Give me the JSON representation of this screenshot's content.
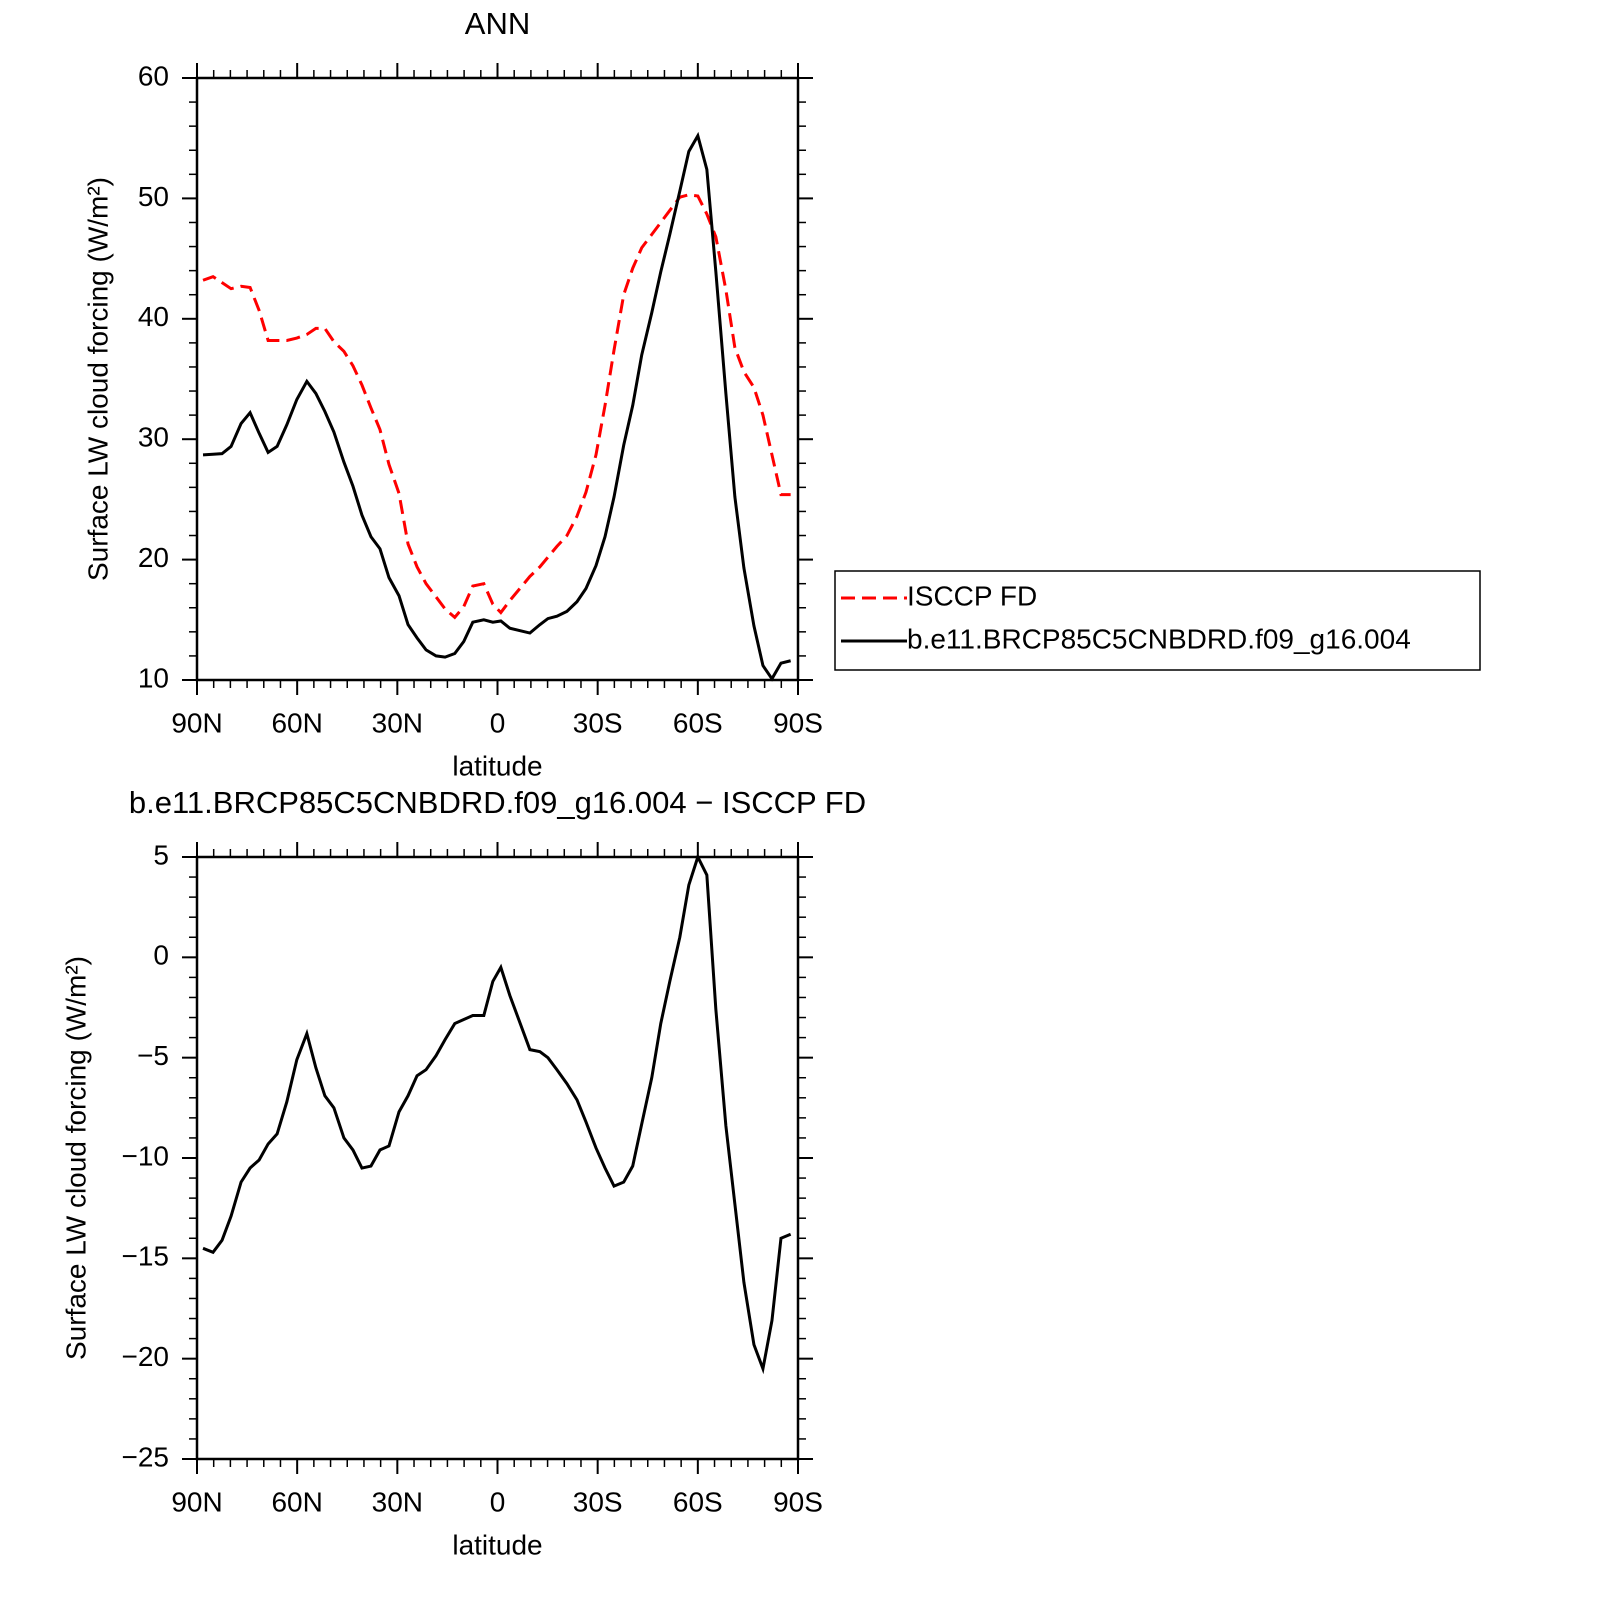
{
  "chart_data": [
    {
      "type": "line",
      "title": "ANN",
      "x_label": "latitude",
      "y_label": "Surface LW cloud forcing (W/m²)",
      "xlim": [
        90,
        -90
      ],
      "xticks": [
        {
          "value": 90,
          "label": "90N"
        },
        {
          "value": 60,
          "label": "60N"
        },
        {
          "value": 30,
          "label": "30N"
        },
        0,
        {
          "value": -30,
          "label": "30S"
        },
        {
          "value": -60,
          "label": "60S"
        },
        {
          "value": -90,
          "label": "90S"
        }
      ],
      "ylim": [
        10,
        60
      ],
      "yticks": [
        10,
        20,
        30,
        40,
        50,
        60
      ],
      "legend": "right",
      "x": [
        88.2,
        85.2,
        82.5,
        79.8,
        76.8,
        74.1,
        71.4,
        68.7,
        66.0,
        63.1,
        60.1,
        57.1,
        54.4,
        51.7,
        49.0,
        46.0,
        43.3,
        40.6,
        37.9,
        35.2,
        32.5,
        29.5,
        26.8,
        24.1,
        21.4,
        18.4,
        15.7,
        12.8,
        10.1,
        7.4,
        4.1,
        1.4,
        -1.0,
        -3.7,
        -9.7,
        -12.7,
        -15.1,
        -17.8,
        -20.8,
        -23.8,
        -26.5,
        -29.5,
        -32.2,
        -34.9,
        -37.8,
        -40.5,
        -43.2,
        -46.2,
        -48.9,
        -51.6,
        -54.6,
        -57.3,
        -60.0,
        -62.7,
        -65.4,
        -68.4,
        -71.1,
        -73.8,
        -76.8,
        -79.5,
        -82.2,
        -84.9,
        -87.8
      ],
      "series": [
        {
          "name": "ISCCP FD",
          "color": "#ff0000",
          "style": "dashed",
          "values": [
            43.2,
            43.5,
            43.0,
            42.5,
            42.7,
            42.6,
            40.7,
            38.2,
            38.2,
            38.2,
            38.4,
            38.7,
            39.2,
            39.2,
            38.1,
            37.3,
            36.1,
            34.5,
            32.6,
            30.8,
            27.9,
            25.5,
            21.3,
            19.4,
            18.0,
            16.9,
            15.9,
            15.2,
            16.1,
            17.8,
            18.0,
            16.3,
            15.6,
            16.6,
            18.6,
            19.4,
            20.2,
            21.1,
            22.0,
            23.6,
            25.6,
            28.7,
            32.8,
            37.4,
            42.0,
            44.2,
            45.9,
            47.0,
            48.0,
            49.0,
            50.1,
            50.3,
            50.2,
            48.7,
            46.8,
            42.4,
            37.6,
            35.6,
            34.3,
            32.0,
            28.7,
            25.4,
            25.4
          ]
        },
        {
          "name": "b.e11.BRCP85C5CNBDRD.f09_g16.004",
          "color": "#000000",
          "style": "solid",
          "values": [
            28.7,
            28.75,
            28.8,
            29.4,
            31.3,
            32.2,
            30.5,
            28.9,
            29.4,
            31.2,
            33.3,
            34.8,
            33.8,
            32.3,
            30.6,
            28.1,
            26.1,
            23.7,
            21.9,
            20.9,
            18.5,
            17.0,
            14.6,
            13.5,
            12.5,
            12.0,
            11.9,
            12.2,
            13.2,
            14.8,
            15.0,
            14.8,
            14.9,
            14.3,
            13.9,
            14.6,
            15.1,
            15.3,
            15.7,
            16.5,
            17.6,
            19.5,
            21.9,
            25.2,
            29.5,
            32.8,
            37.0,
            40.5,
            43.9,
            47.0,
            50.6,
            53.9,
            55.2,
            52.4,
            43.9,
            33.8,
            25.2,
            19.3,
            14.5,
            11.2,
            10.1,
            11.4,
            11.6
          ]
        }
      ]
    },
    {
      "type": "line",
      "title": "b.e11.BRCP85C5CNBDRD.f09_g16.004 − ISCCP FD",
      "x_label": "latitude",
      "y_label": "Surface LW cloud forcing (W/m²)",
      "xlim": [
        90,
        -90
      ],
      "xticks": [
        {
          "value": 90,
          "label": "90N"
        },
        {
          "value": 60,
          "label": "60N"
        },
        {
          "value": 30,
          "label": "30N"
        },
        0,
        {
          "value": -30,
          "label": "30S"
        },
        {
          "value": -60,
          "label": "60S"
        },
        {
          "value": -90,
          "label": "90S"
        }
      ],
      "ylim": [
        -25,
        5
      ],
      "yticks": [
        {
          "value": -25,
          "label": "−25"
        },
        {
          "value": -20,
          "label": "−20"
        },
        {
          "value": -15,
          "label": "−15"
        },
        {
          "value": -10,
          "label": "−10"
        },
        {
          "value": -5,
          "label": "−5"
        },
        0,
        5
      ],
      "x": [
        88.2,
        85.2,
        82.5,
        79.8,
        76.8,
        74.1,
        71.4,
        68.7,
        66.0,
        63.1,
        60.1,
        57.1,
        54.4,
        51.7,
        49.0,
        46.0,
        43.3,
        40.6,
        37.9,
        35.2,
        32.5,
        29.5,
        26.8,
        24.1,
        21.4,
        18.4,
        15.7,
        12.8,
        10.1,
        7.4,
        4.1,
        1.4,
        -1.0,
        -3.7,
        -9.7,
        -12.7,
        -15.1,
        -17.8,
        -20.8,
        -23.8,
        -26.5,
        -29.5,
        -32.2,
        -34.9,
        -37.8,
        -40.5,
        -43.2,
        -46.2,
        -48.9,
        -51.6,
        -54.6,
        -57.3,
        -60.0,
        -62.7,
        -65.4,
        -68.4,
        -71.1,
        -73.8,
        -76.8,
        -79.5,
        -82.2,
        -84.9,
        -87.8
      ],
      "series": [
        {
          "color": "#000000",
          "style": "solid",
          "values": [
            -14.5,
            -14.7,
            -14.1,
            -12.9,
            -11.2,
            -10.5,
            -10.1,
            -9.3,
            -8.8,
            -7.2,
            -5.1,
            -3.8,
            -5.5,
            -6.9,
            -7.5,
            -9.0,
            -9.6,
            -10.5,
            -10.4,
            -9.6,
            -9.4,
            -7.7,
            -6.9,
            -5.9,
            -5.6,
            -4.9,
            -4.1,
            -3.3,
            -3.1,
            -2.9,
            -2.9,
            -1.2,
            -0.5,
            -1.9,
            -4.6,
            -4.7,
            -5.0,
            -5.6,
            -6.3,
            -7.1,
            -8.2,
            -9.5,
            -10.5,
            -11.4,
            -11.2,
            -10.4,
            -8.3,
            -6.0,
            -3.3,
            -1.2,
            1.0,
            3.6,
            5.0,
            4.1,
            -2.6,
            -8.4,
            -12.3,
            -16.2,
            -19.3,
            -20.5,
            -18.1,
            -14.0,
            -13.8
          ]
        }
      ]
    }
  ]
}
